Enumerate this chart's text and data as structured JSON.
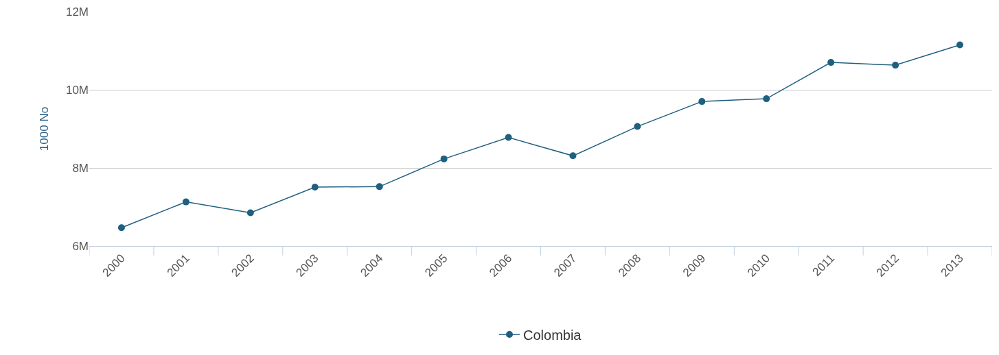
{
  "chart_data": {
    "type": "line",
    "ylabel": "1000 No",
    "categories": [
      "2000",
      "2001",
      "2002",
      "2003",
      "2004",
      "2005",
      "2006",
      "2007",
      "2008",
      "2009",
      "2010",
      "2011",
      "2012",
      "2013"
    ],
    "series": [
      {
        "name": "Colombia",
        "color": "#1f5f80",
        "values": [
          6470000,
          7130000,
          6850000,
          7510000,
          7520000,
          8230000,
          8780000,
          8310000,
          9060000,
          9700000,
          9770000,
          10700000,
          10630000,
          11150000
        ]
      }
    ],
    "ylim": [
      6000000,
      12000000
    ],
    "yticks": [
      {
        "value": 6000000,
        "label": "6M"
      },
      {
        "value": 8000000,
        "label": "8M"
      },
      {
        "value": 10000000,
        "label": "10M"
      },
      {
        "value": 12000000,
        "label": "12M"
      }
    ],
    "grid": "y",
    "legend": "bottom",
    "marker": "circle",
    "line_style": "solid"
  }
}
